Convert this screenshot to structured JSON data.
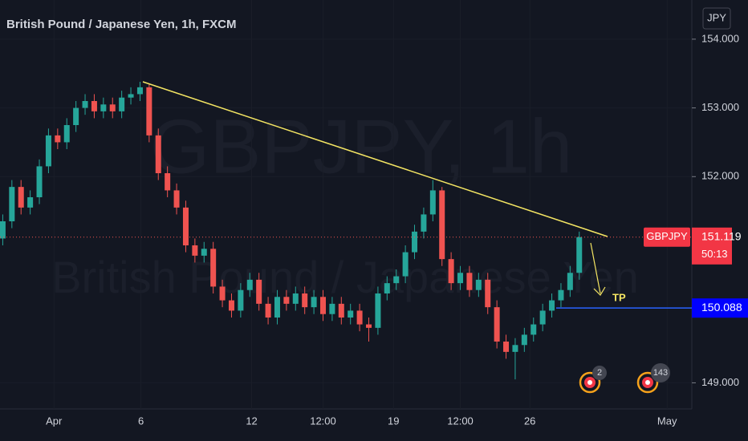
{
  "chart_data": {
    "type": "candlestick",
    "title": "British Pound / Japanese Yen, 1h, FXCM",
    "watermark_symbol": "GBPJPY, 1h",
    "watermark_name": "British Pound / Japanese Yen",
    "currency": "JPY",
    "symbol": "GBPJPY",
    "last_price": 151.119,
    "countdown": "50:13",
    "tp_level": 150.088,
    "tp_label": "TP",
    "events": [
      2,
      143
    ],
    "up_color": "#26a69a",
    "down_color": "#ef5350",
    "open": [
      151.1,
      151.35,
      151.85,
      151.55,
      151.7,
      152.15,
      152.6,
      152.5,
      152.75,
      153.0,
      153.1,
      152.95,
      153.05,
      152.95,
      153.15,
      153.2,
      153.3,
      152.6,
      152.05,
      151.8,
      151.55,
      151.0,
      150.85,
      150.95,
      150.4,
      150.2,
      150.05,
      150.35,
      150.5,
      150.15,
      149.95,
      150.25,
      150.15,
      150.3,
      150.1,
      150.25,
      150.0,
      150.15,
      149.95,
      150.05,
      149.85,
      149.8,
      150.3,
      150.45,
      150.55,
      150.9,
      151.2,
      151.45,
      151.8,
      150.8,
      150.45,
      150.6,
      150.35,
      150.5,
      150.1,
      149.6,
      149.45,
      149.55,
      149.7,
      149.85,
      150.05,
      150.2,
      150.35,
      150.6
    ],
    "high": [
      151.45,
      151.95,
      151.95,
      151.8,
      152.25,
      152.7,
      152.7,
      152.85,
      153.1,
      153.2,
      153.2,
      153.15,
      153.15,
      153.25,
      153.3,
      153.38,
      153.35,
      152.7,
      152.15,
      151.9,
      151.65,
      151.1,
      151.05,
      151.05,
      150.5,
      150.3,
      150.45,
      150.6,
      150.6,
      150.25,
      150.35,
      150.35,
      150.4,
      150.4,
      150.35,
      150.35,
      150.25,
      150.25,
      150.15,
      150.15,
      149.95,
      150.4,
      150.55,
      150.65,
      151.0,
      151.3,
      151.55,
      151.95,
      151.85,
      150.9,
      150.7,
      150.7,
      150.6,
      150.6,
      150.2,
      149.7,
      149.65,
      149.8,
      149.95,
      150.15,
      150.3,
      150.45,
      150.7,
      151.2
    ],
    "low": [
      151.0,
      151.25,
      151.45,
      151.45,
      151.6,
      152.05,
      152.4,
      152.4,
      152.65,
      152.9,
      152.85,
      152.85,
      152.85,
      152.85,
      153.05,
      153.1,
      152.5,
      151.95,
      151.7,
      151.45,
      150.9,
      150.75,
      150.75,
      150.3,
      150.1,
      149.95,
      149.95,
      150.25,
      150.05,
      149.85,
      149.85,
      150.05,
      150.05,
      150.0,
      150.0,
      149.9,
      149.9,
      149.85,
      149.85,
      149.75,
      149.6,
      149.7,
      150.2,
      150.35,
      150.45,
      150.8,
      151.1,
      151.35,
      150.7,
      150.35,
      150.35,
      150.25,
      150.25,
      150.0,
      149.5,
      149.35,
      149.05,
      149.45,
      149.6,
      149.75,
      149.95,
      150.1,
      150.25,
      150.5
    ],
    "close": [
      151.35,
      151.85,
      151.55,
      151.7,
      152.15,
      152.6,
      152.5,
      152.75,
      153.0,
      153.1,
      152.95,
      153.05,
      152.95,
      153.15,
      153.2,
      153.3,
      152.6,
      152.05,
      151.8,
      151.55,
      151.0,
      150.85,
      150.95,
      150.4,
      150.2,
      150.05,
      150.35,
      150.5,
      150.15,
      149.95,
      150.25,
      150.15,
      150.3,
      150.1,
      150.25,
      150.0,
      150.15,
      149.95,
      150.05,
      149.85,
      149.8,
      150.3,
      150.45,
      150.55,
      150.9,
      151.2,
      151.45,
      151.8,
      150.8,
      150.45,
      150.6,
      150.35,
      150.5,
      150.1,
      149.6,
      149.45,
      149.55,
      149.7,
      149.85,
      150.05,
      150.2,
      150.35,
      150.6,
      151.12
    ],
    "xlim": [
      -0.3,
      75.3
    ],
    "xticks": [
      {
        "value": 5.6,
        "label": "Apr"
      },
      {
        "value": 15.1,
        "label": "6"
      },
      {
        "value": 27.2,
        "label": "12"
      },
      {
        "value": 35.0,
        "label": "12:00"
      },
      {
        "value": 42.7,
        "label": "19"
      },
      {
        "value": 50.0,
        "label": "12:00"
      },
      {
        "value": 57.6,
        "label": "26"
      },
      {
        "value": 72.6,
        "label": "May"
      }
    ],
    "ylim": [
      148.62,
      154.57
    ],
    "yticks": [
      {
        "value": 149,
        "label": "149.000"
      },
      {
        "value": 152,
        "label": "152.000"
      },
      {
        "value": 153,
        "label": "153.000"
      },
      {
        "value": 154,
        "label": "154.000"
      }
    ]
  }
}
